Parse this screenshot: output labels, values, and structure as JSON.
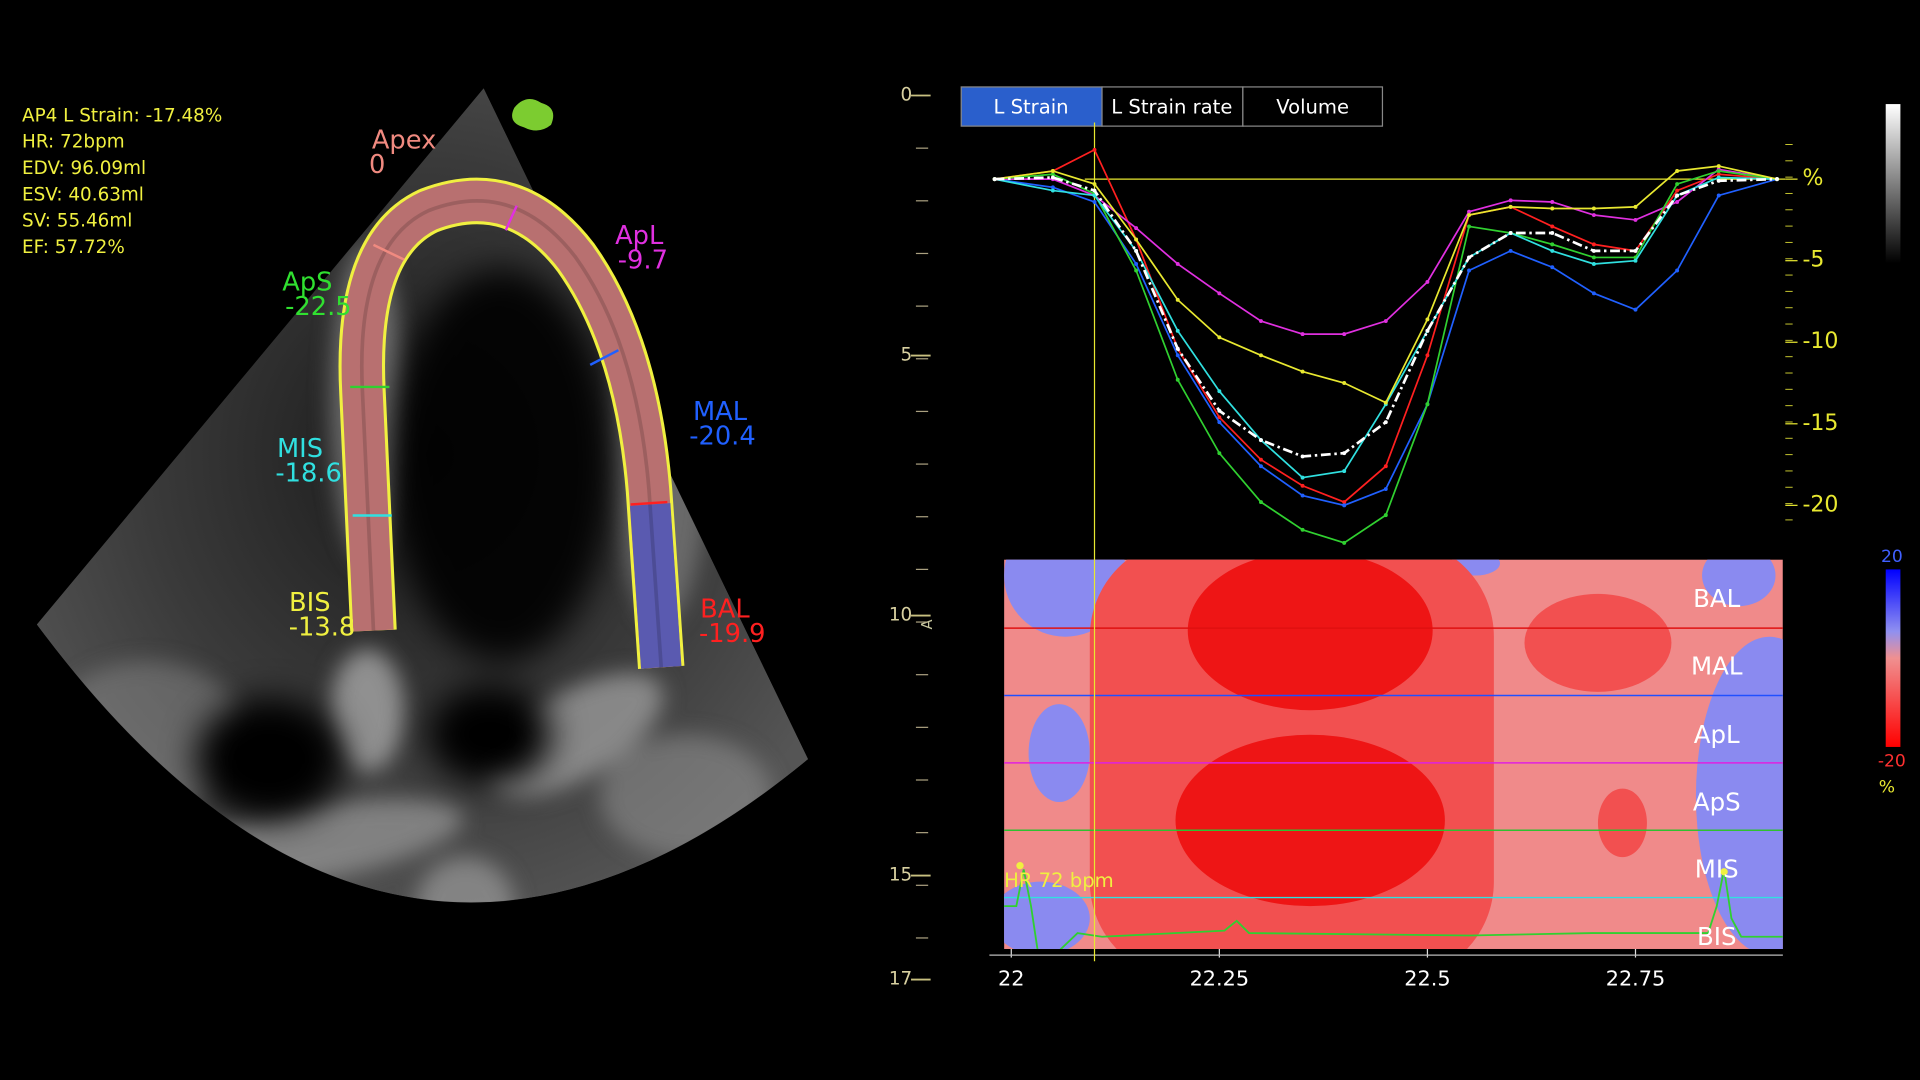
{
  "measurements": [
    "AP4 L Strain: -17.48%",
    "HR:  72bpm",
    "EDV: 96.09ml",
    "ESV: 40.63ml",
    "SV: 55.46ml",
    "EF: 57.72%"
  ],
  "segments": [
    {
      "name": "Apex",
      "value": 0,
      "color": "#f08a80"
    },
    {
      "name": "ApL",
      "value": -9.7,
      "color": "#e030e0"
    },
    {
      "name": "ApS",
      "value": -22.5,
      "color": "#30e030"
    },
    {
      "name": "MAL",
      "value": -20.4,
      "color": "#2060ff"
    },
    {
      "name": "MIS",
      "value": -18.6,
      "color": "#30e0e0"
    },
    {
      "name": "BIS",
      "value": -13.8,
      "color": "#f0f040"
    },
    {
      "name": "BAL",
      "value": -19.9,
      "color": "#ff2020"
    }
  ],
  "tabs": [
    "L Strain",
    "L Strain rate",
    "Volume"
  ],
  "depth_axis": {
    "lim": [
      0,
      17
    ],
    "ticks": [
      0,
      5,
      10,
      15,
      17
    ]
  },
  "depth_marker": "A",
  "hr_label": "HR 72 bpm",
  "colorbar": {
    "max": 20,
    "min": -20,
    "unit": "%"
  },
  "chart_data": {
    "type": "line",
    "x": [
      21.98,
      22.05,
      22.1,
      22.15,
      22.2,
      22.25,
      22.3,
      22.35,
      22.4,
      22.45,
      22.5,
      22.55,
      22.6,
      22.65,
      22.7,
      22.75,
      22.8,
      22.85,
      22.92
    ],
    "xlim": [
      21.984,
      22.93
    ],
    "xticks": [
      22,
      22.25,
      22.5,
      22.75
    ],
    "ylim": [
      -22.5,
      2.5
    ],
    "yticks": [
      {
        "value": 0,
        "label": "%"
      },
      -5,
      -10,
      -15,
      -20
    ],
    "cursor_x": 22.1,
    "zero_line": true,
    "series": [
      {
        "name": "BAL",
        "color": "#ff2020",
        "values": [
          0,
          0.5,
          1.8,
          -3.7,
          -10.4,
          -14.6,
          -17.2,
          -18.8,
          -19.8,
          -17.6,
          -10.8,
          -2.2,
          -1.7,
          -2.9,
          -4,
          -4.4,
          -0.7,
          0.3,
          0
        ]
      },
      {
        "name": "MAL",
        "color": "#2060ff",
        "values": [
          0,
          -0.5,
          -1.4,
          -5.2,
          -10.8,
          -14.9,
          -17.6,
          -19.4,
          -20,
          -19,
          -13.8,
          -5.6,
          -4.4,
          -5.4,
          -7,
          -8,
          -5.6,
          -1,
          0
        ]
      },
      {
        "name": "ApL",
        "color": "#e030e0",
        "values": [
          0,
          0,
          -1,
          -3,
          -5.2,
          -7,
          -8.7,
          -9.5,
          -9.5,
          -8.7,
          -6.3,
          -2,
          -1.3,
          -1.4,
          -2.2,
          -2.5,
          -1.4,
          0.6,
          0
        ]
      },
      {
        "name": "ApS",
        "color": "#30d030",
        "values": [
          0,
          0.3,
          -0.9,
          -5.6,
          -12.3,
          -16.8,
          -19.8,
          -21.5,
          -22.3,
          -20.6,
          -13.8,
          -2.9,
          -3.3,
          -4,
          -4.8,
          -4.8,
          -0.3,
          0.5,
          0
        ]
      },
      {
        "name": "MIS",
        "color": "#30e0e0",
        "values": [
          0,
          -0.7,
          -1,
          -4.4,
          -9.3,
          -13,
          -16,
          -18.3,
          -17.9,
          -13.8,
          -9.3,
          -4.8,
          -3.3,
          -4.4,
          -5.2,
          -5,
          -1,
          0.1,
          0
        ]
      },
      {
        "name": "BIS",
        "color": "#e8e830",
        "values": [
          0,
          0.5,
          -0.3,
          -3.7,
          -7.4,
          -9.7,
          -10.8,
          -11.8,
          -12.5,
          -13.7,
          -8.6,
          -2.2,
          -1.7,
          -1.8,
          -1.8,
          -1.7,
          0.5,
          0.8,
          0
        ]
      },
      {
        "color": "#ffffff",
        "dash": true,
        "values": [
          0,
          0.1,
          -0.7,
          -4.4,
          -10.4,
          -14.2,
          -16,
          -17,
          -16.8,
          -14.9,
          -9.3,
          -4.8,
          -3.3,
          -3.3,
          -4.4,
          -4.4,
          -1,
          -0.1,
          0
        ]
      }
    ]
  }
}
